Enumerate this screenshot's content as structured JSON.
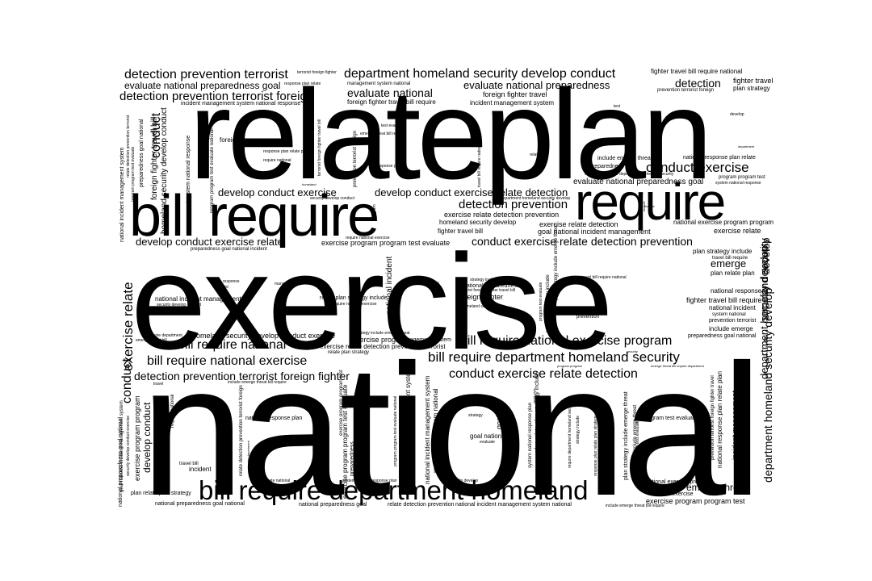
{
  "cloud": {
    "background": "#ffffff",
    "text_color": "#000000",
    "words": {
      "national": "national",
      "exercise": "exercise",
      "relateplan": "relateplan",
      "require": "require",
      "bill_require": "bill require",
      "bill_require_department_homeland": "bill require department homeland",
      "detection_prevention_terrorist": "detection prevention terrorist",
      "evaluate_national_preparedness_goal": "evaluate national preparedness goal",
      "detection_prevention_terrorist_foreign": "detection prevention terrorist foreign",
      "department_homeland_security_develop_conduct": "department homeland security develop conduct",
      "evaluate_national_preparedness": "evaluate national preparedness",
      "evaluate_national": "evaluate national",
      "foreign_fighter_travel": "foreign fighter travel",
      "foreign_fighter_travel_bill_require": "foreign fighter travel bill require",
      "incident_management_system": "incident management system",
      "fighter_travel_bill_require_national": "fighter travel bill require national",
      "detection": "detection",
      "fighter_travel": "fighter travel",
      "plan_strategy": "plan strategy",
      "prevention_terrorist_foreign": "prevention terrorist foreign",
      "conduct_exercise": "conduct exercise",
      "develop_conduct_exercise": "develop conduct exercise",
      "develop_conduct_exercise_relate_detection": "develop conduct exercise relate detection",
      "detection_prevention": "detection prevention",
      "exercise_relate_detection_prevention": "exercise relate detection prevention",
      "homeland_security_develop": "homeland security develop",
      "fighter_travel_bill": "fighter travel bill",
      "exercise_relate_detection": "exercise relate detection",
      "goal_national_incident_management": "goal national incident management",
      "develop_conduct_exercise_relate": "develop conduct exercise relate",
      "exercise_program_program_test_evaluate": "exercise program program test evaluate",
      "conduct_exercise_relate_detection_prevention": "conduct exercise relate detection prevention",
      "national_exercise_program_program": "national exercise program program",
      "exercise_relate": "exercise relate",
      "emerge": "emerge",
      "plan_relate_plan": "plan relate plan",
      "national_response": "national response",
      "fighter_travel_bill_require": "fighter travel bill require",
      "national_incident": "national incident",
      "system_national": "system national",
      "prevention_terrorist": "prevention terrorist",
      "include_emerge": "include emerge",
      "preparedness_goal_national": "preparedness goal national",
      "bill_require_national": "bill require national",
      "bill_require_national_exercise": "bill require national exercise",
      "bill_require_national_exercise_program": "bill require national exercise program",
      "bill_require_department_homeland_security": "bill require department homeland security",
      "conduct_exercise_relate_detection": "conduct exercise relate detection",
      "detection_prevention_terrorist_foreign_fighter": "detection prevention terrorist foreign fighter",
      "homeland_security_develop_conduct_exercise": "homeland security develop conduct exercise",
      "exercise_relate_detection_prevention_terrorist": "exercise relate detection prevention terrorist",
      "exercise_program": "exercise program",
      "relate_plan_strategy": "relate plan strategy",
      "national_preparedness": "national preparedness",
      "foreign_fighter": "foreign fighter",
      "national_incident_management": "national incident management",
      "emerge_threat": "emerge threat",
      "exercise_program_program_test": "exercise program program test",
      "national_preparedness_goal_national": "national preparedness goal national",
      "national_preparedness_goal": "national preparedness goal",
      "relate_detection_prevention": "relate detection prevention",
      "national_incident_management_system_national": "national incident management system national",
      "plan_relate_plan_strategy": "plan relate plan strategy",
      "national_response_plan": "national response plan",
      "goal_national": "goal national",
      "goal": "goal",
      "conduct": "conduct",
      "exercise_relate_v": "exercise relate",
      "homeland_security_develop_conduct": "homeland security develop conduct",
      "conduct_v2": "conduct",
      "develop_conduct": "develop conduct",
      "exercise_program_program": "exercise program program",
      "department_homeland_security_develop": "department homeland security develop",
      "national_incident_management_system": "national incident management system",
      "foreign_fighter_travel_bill": "foreign fighter travel bill",
      "national_exercise": "national exercise",
      "national_exercise_program": "national exercise program",
      "plan_strategy_include": "plan strategy include",
      "travel_bill_require": "travel bill require",
      "develop_conduct_exercise_small": "develop conduct exercise",
      "relate_plan": "relate plan",
      "include_emerge_threat": "include emerge threat",
      "program_test_evaluate": "program test evaluate",
      "test_evaluate": "test evaluate",
      "incident": "incident",
      "travel_bill": "travel bill",
      "strategy": "strategy",
      "evaluate": "evaluate",
      "prevention": "prevention",
      "foreign": "foreign",
      "test": "test",
      "response": "response",
      "terrorist": "terrorist",
      "management": "management",
      "homeland": "homeland",
      "security": "security",
      "travel": "travel",
      "fighter": "fighter",
      "require_national": "require national",
      "response_plan": "response plan",
      "response_plan_relate_plan": "response plan relate plan",
      "terrorist_foreign_fighter": "terrorist foreign fighter",
      "response_plan_relate": "response plan relate",
      "management_system_national": "management system national",
      "incident_management_system_national_response": "incident management system national response",
      "emerge_threat_bill_require": "emerge threat bill require",
      "preparedness_goal": "preparedness goal",
      "include_emerge_threat_small": "include emerge threat",
      "national_response_plan_relate": "national response plan relate",
      "program_program_test": "program program test",
      "system_national_response": "system national response",
      "plan_strategy_include_small": "plan strategy include",
      "strategy_include_emerge": "strategy include emerge",
      "national_preparedness_small": "national preparedness",
      "terrorist_foreign_fighter_travel_bill": "terrorist foreign fighter travel bill",
      "homeland_security": "homeland security",
      "relate_plan_strategy_include": "relate plan strategy include",
      "require_national_exercise": "require national exercise",
      "security_develop_conduct": "security develop conduct",
      "bill_require_department": "bill require department",
      "emerge_threat_bill": "emerge threat bill",
      "strategy_include_emerge_threat": "strategy include emerge threat",
      "management_system": "management system",
      "include_emerge_threat_bill_require": "include emerge threat bill require",
      "system_national_response_plan": "system national response plan",
      "program_test_evaluate_small": "program test evaluate",
      "test_evaluate_national": "test evaluate national",
      "security_develop": "security develop",
      "travel_bill_require_national": "travel bill require national",
      "emerge_threat_bill_require_department": "emerge threat bill require department",
      "preparedness": "preparedness",
      "national_incident_management_system_v": "national incident management system",
      "management_system_national_v": "management system national",
      "program_program_test_evaluate_national": "program program test evaluate national",
      "relate_plan_strategy_include_v": "relate plan strategy include",
      "system_national_response_plan_v": "system national response plan",
      "fighter_travel_bill_require_v": "fighter travel bill require",
      "national_preparedness_goal_national_v": "national preparedness goal national",
      "department_homeland_security_v": "department homeland security",
      "incident_management": "incident management",
      "prevention_terrorist_foreign_fighter_travel": "prevention terrorist foreign fighter travel",
      "national_response_plan_relate_plan": "national response plan relate plan",
      "department_homeland_security_develop_v": "department homeland security develop",
      "threat": "threat",
      "plan_strategy_include_emerge_threat": "plan strategy include emerge threat",
      "response_plan_relate_plan_strategy": "response plan relate plan strategy",
      "include_emerge_threat_v": "include emerge threat",
      "strategy_include": "strategy include",
      "require_department_homeland": "require department homeland",
      "plan_relate_plan_strategy_include": "plan relate plan strategy include",
      "goal_national_incident_management_system": "goal national incident management system",
      "national_incident_management_system_v2": "national incident management system",
      "relate_detection_prevention_terrorist_foreign": "relate detection prevention terrorist foreign",
      "require_department": "require department",
      "travel_small": "travel",
      "incident_v": "incident",
      "program_program_test_evaluate": "program program test evaluate",
      "develop_conduct_v": "develop conduct",
      "national_incident_management_system_v3": "national incident management system",
      "response_v": "response",
      "program_program": "program program",
      "program": "program",
      "national_preparedness_goal_v": "national preparedness goal",
      "emerge_threat_bill_require_small": "emerge threat bill require",
      "relate_plan_v": "relate plan",
      "require_national_v": "require national",
      "security_develop_conduct_exercise": "security develop conduct exercise",
      "plan": "plan",
      "system": "system",
      "department": "department",
      "include": "include",
      "national_incident_management_system_national_v": "national incident management system national",
      "incident_management_system_national_response_v": "incident management system national response",
      "preparedness_goal_national_incident": "preparedness goal national incident",
      "require_department_homeland_security": "require department homeland security",
      "national_exercise_v": "national exercise",
      "exercise_program_program_test_evaluate_v": "exercise program program test evaluate",
      "prevention_terrorist_foreign_v": "prevention terrorist foreign",
      "relate_detection_prevention_terrorist": "relate detection prevention terrorist",
      "response_plan_relate_plan_v": "response plan relate plan",
      "travel_v": "travel",
      "national_preparedness_v": "national preparedness",
      "preparedness_goal_national_v": "preparedness goal national",
      "incident_management_v": "incident management",
      "develop": "develop",
      "emerge_threat_bill_v": "emerge threat bill",
      "test_evaluate_v": "test evaluate",
      "national_v": "national",
      "management_system_national_response": "management system national response"
    }
  }
}
